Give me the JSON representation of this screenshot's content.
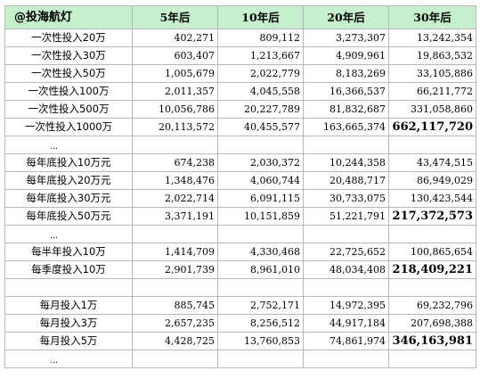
{
  "header": {
    "corner": "@投海航灯",
    "columns": [
      "5年后",
      "10年后",
      "20年后",
      "30年后"
    ]
  },
  "rows": [
    {
      "label": "一次性投入20万",
      "values": [
        "402,271",
        "809,112",
        "3,273,307",
        "13,242,354"
      ],
      "bold_last": false
    },
    {
      "label": "一次性投入30万",
      "values": [
        "603,407",
        "1,213,667",
        "4,909,961",
        "19,863,532"
      ],
      "bold_last": false
    },
    {
      "label": "一次性投入50万",
      "values": [
        "1,005,679",
        "2,022,779",
        "8,183,269",
        "33,105,886"
      ],
      "bold_last": false
    },
    {
      "label": "一次性投入100万",
      "values": [
        "2,011,357",
        "4,045,558",
        "16,366,537",
        "66,211,772"
      ],
      "bold_last": false
    },
    {
      "label": "一次性投入500万",
      "values": [
        "10,056,786",
        "20,227,789",
        "81,832,687",
        "331,058,860"
      ],
      "bold_last": false
    },
    {
      "label": "一次性投入1000万",
      "values": [
        "20,113,572",
        "40,455,577",
        "163,665,374",
        "662,117,720"
      ],
      "bold_last": true
    },
    {
      "ellipsis": "…"
    },
    {
      "label": "每年底投入10万元",
      "values": [
        "674,238",
        "2,030,372",
        "10,244,358",
        "43,474,515"
      ],
      "bold_last": false
    },
    {
      "label": "每年底投入20万元",
      "values": [
        "1,348,476",
        "4,060,744",
        "20,488,717",
        "86,949,029"
      ],
      "bold_last": false
    },
    {
      "label": "每年底投入30万元",
      "values": [
        "2,022,714",
        "6,091,115",
        "30,733,075",
        "130,423,544"
      ],
      "bold_last": false
    },
    {
      "label": "每年底投入50万元",
      "values": [
        "3,371,191",
        "10,151,859",
        "51,221,791",
        "217,372,573"
      ],
      "bold_last": true
    },
    {
      "ellipsis": "…"
    },
    {
      "label": "每半年投入10万",
      "values": [
        "1,414,709",
        "4,330,468",
        "22,725,652",
        "100,865,654"
      ],
      "bold_last": false
    },
    {
      "label": "每季度投入10万",
      "values": [
        "2,901,739",
        "8,961,010",
        "48,034,408",
        "218,409,221"
      ],
      "bold_last": true
    },
    {
      "blank": true
    },
    {
      "label": "每月投入1万",
      "values": [
        "885,745",
        "2,752,171",
        "14,972,395",
        "69,232,796"
      ],
      "bold_last": false
    },
    {
      "label": "每月投入3万",
      "values": [
        "2,657,235",
        "8,256,512",
        "44,917,184",
        "207,698,388"
      ],
      "bold_last": false
    },
    {
      "label": "每月投入5万",
      "values": [
        "4,428,725",
        "13,760,853",
        "74,861,974",
        "346,163,981"
      ],
      "bold_last": true
    },
    {
      "ellipsis": "…"
    }
  ]
}
